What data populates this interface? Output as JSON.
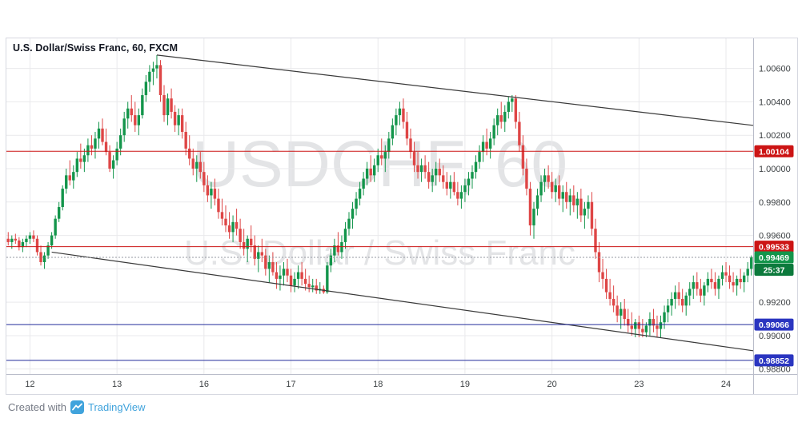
{
  "chart": {
    "title": "U.S. Dollar/Swiss Franc, 60, FXCM",
    "watermark_line1": "USDCHF, 60",
    "watermark_line2": "U.S. Dollar / Swiss Franc"
  },
  "footer": {
    "created_with": "Created with",
    "brand": "TradingView"
  },
  "colors": {
    "background": "#ffffff",
    "grid": "#e9e9ec",
    "axis_border": "#b9bcc9",
    "axis_text": "#3c4043",
    "up": "#13954b",
    "down": "#de4646",
    "trendline": "#3a3a3a",
    "line_red": "#cc1414",
    "badge_red": "#cc1414",
    "line_blue": "#202a9a",
    "badge_blue": "#2a35c0",
    "current_badge": "#13954b",
    "countdown_badge": "#0c7a3c",
    "current_line": "#9598a1",
    "watermark": "rgba(60,65,75,0.14)",
    "brand_blue": "#40a3dc",
    "footer_text": "#757a85"
  },
  "chart_data": {
    "type": "candlestick",
    "symbol": "USDCHF",
    "name": "U.S. Dollar/Swiss Franc",
    "interval_minutes": "60",
    "exchange": "FXCM",
    "y_range": [
      0.9877,
      1.0078
    ],
    "y_ticks": [
      1.006,
      1.004,
      1.002,
      1.0,
      0.998,
      0.996,
      0.994,
      0.992,
      0.99,
      0.988
    ],
    "x_tick_labels": [
      "12",
      "13",
      "16",
      "17",
      "18",
      "19",
      "20",
      "23",
      "24"
    ],
    "x_tick_indices": [
      6,
      30,
      54,
      78,
      102,
      126,
      150,
      174,
      198
    ],
    "price_lines": [
      {
        "price": 1.00104,
        "label": "1.00104",
        "color": "red"
      },
      {
        "price": 0.99533,
        "label": "0.99533",
        "color": "red"
      },
      {
        "price": 0.99066,
        "label": "0.99066",
        "color": "blue"
      },
      {
        "price": 0.98852,
        "label": "0.98852",
        "color": "blue"
      }
    ],
    "current_price": {
      "price": 0.99469,
      "label": "0.99469",
      "countdown": "25:37",
      "direction": "up"
    },
    "trendlines": [
      {
        "name": "upper-descending-trendline",
        "from": [
          41,
          1.0068
        ],
        "to": [
          207,
          1.00255
        ]
      },
      {
        "name": "lower-descending-trendline",
        "from": [
          12,
          0.995
        ],
        "to": [
          207,
          0.98905
        ]
      }
    ],
    "candles_format": "[open, high, low, close]",
    "candles": [
      [
        0.9958,
        0.9962,
        0.9954,
        0.9956
      ],
      [
        0.9956,
        0.996,
        0.9952,
        0.9958
      ],
      [
        0.9958,
        0.9961,
        0.9955,
        0.9957
      ],
      [
        0.9957,
        0.9959,
        0.9951,
        0.9953
      ],
      [
        0.9953,
        0.9958,
        0.995,
        0.9956
      ],
      [
        0.9956,
        0.996,
        0.9953,
        0.9958
      ],
      [
        0.9958,
        0.9962,
        0.9955,
        0.996
      ],
      [
        0.996,
        0.9963,
        0.9956,
        0.9958
      ],
      [
        0.9958,
        0.996,
        0.9948,
        0.995
      ],
      [
        0.995,
        0.9954,
        0.9942,
        0.9944
      ],
      [
        0.9944,
        0.995,
        0.994,
        0.9948
      ],
      [
        0.9948,
        0.9956,
        0.9946,
        0.9954
      ],
      [
        0.9954,
        0.9962,
        0.9952,
        0.996
      ],
      [
        0.996,
        0.9972,
        0.9958,
        0.997
      ],
      [
        0.997,
        0.998,
        0.9968,
        0.9977
      ],
      [
        0.9977,
        0.999,
        0.9975,
        0.9988
      ],
      [
        0.9988,
        1.0,
        0.9985,
        0.9996
      ],
      [
        0.9996,
        1.0005,
        0.999,
        0.9993
      ],
      [
        0.9993,
        1.0002,
        0.9988,
        0.9998
      ],
      [
        0.9998,
        1.001,
        0.9995,
        1.0006
      ],
      [
        1.0006,
        1.0015,
        1.0,
        1.0004
      ],
      [
        1.0004,
        1.0012,
        0.9998,
        1.0008
      ],
      [
        1.0008,
        1.0018,
        1.0004,
        1.0014
      ],
      [
        1.0014,
        1.002,
        1.0008,
        1.0012
      ],
      [
        1.0012,
        1.0022,
        1.0006,
        1.0018
      ],
      [
        1.0018,
        1.0028,
        1.0012,
        1.0024
      ],
      [
        1.0024,
        1.003,
        1.0014,
        1.0016
      ],
      [
        1.0016,
        1.0024,
        1.0008,
        1.001
      ],
      [
        1.001,
        1.0014,
        0.9998,
        1.0
      ],
      [
        1.0,
        1.0008,
        0.9994,
        1.0005
      ],
      [
        1.0005,
        1.0016,
        1.0002,
        1.0012
      ],
      [
        1.0012,
        1.0024,
        1.0008,
        1.002
      ],
      [
        1.002,
        1.0034,
        1.0016,
        1.003
      ],
      [
        1.003,
        1.004,
        1.0024,
        1.0036
      ],
      [
        1.0036,
        1.0044,
        1.0028,
        1.0032
      ],
      [
        1.0032,
        1.004,
        1.0022,
        1.0026
      ],
      [
        1.0026,
        1.0036,
        1.002,
        1.0032
      ],
      [
        1.0032,
        1.0048,
        1.003,
        1.0044
      ],
      [
        1.0044,
        1.0056,
        1.004,
        1.0052
      ],
      [
        1.0052,
        1.0062,
        1.0046,
        1.0058
      ],
      [
        1.0058,
        1.0064,
        1.005,
        1.006
      ],
      [
        1.006,
        1.0068,
        1.0054,
        1.0062
      ],
      [
        1.0062,
        1.0065,
        1.004,
        1.0044
      ],
      [
        1.0044,
        1.005,
        1.0028,
        1.0032
      ],
      [
        1.0032,
        1.0045,
        1.0026,
        1.0042
      ],
      [
        1.0042,
        1.0048,
        1.003,
        1.0034
      ],
      [
        1.0034,
        1.0038,
        1.0022,
        1.0026
      ],
      [
        1.0026,
        1.0036,
        1.002,
        1.0032
      ],
      [
        1.0032,
        1.0036,
        1.0018,
        1.0022
      ],
      [
        1.0022,
        1.0028,
        1.0008,
        1.0012
      ],
      [
        1.0012,
        1.002,
        1.0002,
        1.0006
      ],
      [
        1.0006,
        1.0012,
        0.9996,
        1.0
      ],
      [
        1.0,
        1.0008,
        0.9992,
        1.0004
      ],
      [
        1.0004,
        1.001,
        0.9994,
        0.9998
      ],
      [
        0.9998,
        1.0004,
        0.9986,
        0.999
      ],
      [
        0.999,
        0.9996,
        0.998,
        0.9984
      ],
      [
        0.9984,
        0.9992,
        0.9976,
        0.9988
      ],
      [
        0.9988,
        0.9994,
        0.9978,
        0.9982
      ],
      [
        0.9982,
        0.9988,
        0.997,
        0.9974
      ],
      [
        0.9974,
        0.9982,
        0.9966,
        0.997
      ],
      [
        0.997,
        0.9978,
        0.9962,
        0.9966
      ],
      [
        0.9966,
        0.9974,
        0.9958,
        0.9962
      ],
      [
        0.9962,
        0.9972,
        0.9956,
        0.9968
      ],
      [
        0.9968,
        0.9976,
        0.996,
        0.9964
      ],
      [
        0.9964,
        0.997,
        0.9952,
        0.9956
      ],
      [
        0.9956,
        0.9964,
        0.9948,
        0.9952
      ],
      [
        0.9952,
        0.996,
        0.9944,
        0.9958
      ],
      [
        0.9958,
        0.9966,
        0.995,
        0.9954
      ],
      [
        0.9954,
        0.996,
        0.9942,
        0.9946
      ],
      [
        0.9946,
        0.9954,
        0.9938,
        0.995
      ],
      [
        0.995,
        0.9958,
        0.9944,
        0.9948
      ],
      [
        0.9948,
        0.9952,
        0.9936,
        0.994
      ],
      [
        0.994,
        0.9948,
        0.9932,
        0.9944
      ],
      [
        0.9944,
        0.995,
        0.9936,
        0.9938
      ],
      [
        0.9938,
        0.9944,
        0.9928,
        0.9934
      ],
      [
        0.9934,
        0.9942,
        0.9927,
        0.9936
      ],
      [
        0.9936,
        0.9944,
        0.993,
        0.994
      ],
      [
        0.994,
        0.9946,
        0.9932,
        0.9936
      ],
      [
        0.9936,
        0.994,
        0.9926,
        0.993
      ],
      [
        0.993,
        0.9938,
        0.9926,
        0.9934
      ],
      [
        0.9934,
        0.9942,
        0.9928,
        0.9938
      ],
      [
        0.9938,
        0.9944,
        0.993,
        0.9934
      ],
      [
        0.9934,
        0.994,
        0.9927,
        0.9931
      ],
      [
        0.9931,
        0.9936,
        0.9926,
        0.9929
      ],
      [
        0.9929,
        0.9934,
        0.9926,
        0.993
      ],
      [
        0.993,
        0.9934,
        0.9925,
        0.9927
      ],
      [
        0.9927,
        0.9932,
        0.9925,
        0.9928
      ],
      [
        0.9928,
        0.993,
        0.9925,
        0.9926
      ],
      [
        0.9926,
        0.9944,
        0.9925,
        0.9942
      ],
      [
        0.9942,
        0.9952,
        0.9938,
        0.9948
      ],
      [
        0.9948,
        0.9958,
        0.9944,
        0.9954
      ],
      [
        0.9954,
        0.9962,
        0.9948,
        0.995
      ],
      [
        0.995,
        0.996,
        0.9946,
        0.9956
      ],
      [
        0.9956,
        0.9968,
        0.9952,
        0.9964
      ],
      [
        0.9964,
        0.9974,
        0.996,
        0.997
      ],
      [
        0.997,
        0.998,
        0.9964,
        0.9976
      ],
      [
        0.9976,
        0.9986,
        0.9972,
        0.9982
      ],
      [
        0.9982,
        0.9992,
        0.9978,
        0.9988
      ],
      [
        0.9988,
        0.9998,
        0.9984,
        0.9994
      ],
      [
        0.9994,
        1.0004,
        0.999,
        1.0
      ],
      [
        1.0,
        1.0008,
        0.9992,
        0.9996
      ],
      [
        0.9996,
        1.0006,
        0.9992,
        1.0002
      ],
      [
        1.0002,
        1.0012,
        0.9998,
        1.0008
      ],
      [
        1.0008,
        1.0018,
        1.0002,
        1.0006
      ],
      [
        1.0006,
        1.0014,
        0.9998,
        1.001
      ],
      [
        1.001,
        1.0022,
        1.0006,
        1.0018
      ],
      [
        1.0018,
        1.003,
        1.0014,
        1.0026
      ],
      [
        1.0026,
        1.0036,
        1.002,
        1.0032
      ],
      [
        1.0032,
        1.004,
        1.0026,
        1.0036
      ],
      [
        1.0036,
        1.0042,
        1.0024,
        1.0028
      ],
      [
        1.0028,
        1.0034,
        1.0014,
        1.0018
      ],
      [
        1.0018,
        1.0024,
        1.0006,
        1.001
      ],
      [
        1.001,
        1.0016,
        0.9998,
        1.0002
      ],
      [
        1.0002,
        1.001,
        0.9994,
        0.9998
      ],
      [
        0.9998,
        1.0006,
        0.9992,
        1.0002
      ],
      [
        1.0002,
        1.0008,
        0.9994,
        0.9998
      ],
      [
        0.9998,
        1.0004,
        0.9988,
        0.9992
      ],
      [
        0.9992,
        1.0,
        0.9986,
        0.9996
      ],
      [
        0.9996,
        1.0004,
        0.999,
        1.0
      ],
      [
        1.0,
        1.0006,
        0.9992,
        0.9996
      ],
      [
        0.9996,
        1.0002,
        0.9988,
        0.9992
      ],
      [
        0.9992,
        0.9998,
        0.9984,
        0.9988
      ],
      [
        0.9988,
        0.9996,
        0.9982,
        0.9992
      ],
      [
        0.9992,
        0.9998,
        0.9984,
        0.9986
      ],
      [
        0.9986,
        0.9992,
        0.9978,
        0.9982
      ],
      [
        0.9982,
        0.999,
        0.9976,
        0.9986
      ],
      [
        0.9986,
        0.9994,
        0.998,
        0.999
      ],
      [
        0.999,
        0.9998,
        0.9984,
        0.9994
      ],
      [
        0.9994,
        1.0002,
        0.9988,
        0.9998
      ],
      [
        0.9998,
        1.0008,
        0.9994,
        1.0004
      ],
      [
        1.0004,
        1.0014,
        1.0,
        1.001
      ],
      [
        1.001,
        1.002,
        1.0004,
        1.0016
      ],
      [
        1.0016,
        1.0024,
        1.0008,
        1.0012
      ],
      [
        1.0012,
        1.0022,
        1.0006,
        1.0018
      ],
      [
        1.0018,
        1.003,
        1.0014,
        1.0026
      ],
      [
        1.0026,
        1.0036,
        1.002,
        1.0032
      ],
      [
        1.0032,
        1.004,
        1.0024,
        1.0028
      ],
      [
        1.0028,
        1.0038,
        1.0022,
        1.0034
      ],
      [
        1.0034,
        1.0043,
        1.003,
        1.004
      ],
      [
        1.004,
        1.0044,
        1.0034,
        1.0042
      ],
      [
        1.0042,
        1.0044,
        1.0024,
        1.0028
      ],
      [
        1.0028,
        1.0034,
        1.001,
        1.0014
      ],
      [
        1.0014,
        1.002,
        0.9996,
        1.0
      ],
      [
        1.0,
        1.0006,
        0.9984,
        0.9988
      ],
      [
        0.9988,
        0.9992,
        0.996,
        0.9966
      ],
      [
        0.9966,
        0.998,
        0.9958,
        0.9976
      ],
      [
        0.9976,
        0.9988,
        0.9972,
        0.9984
      ],
      [
        0.9984,
        0.9996,
        0.998,
        0.9992
      ],
      [
        0.9992,
        1.0,
        0.9986,
        0.9996
      ],
      [
        0.9996,
        1.0002,
        0.9988,
        0.9992
      ],
      [
        0.9992,
        0.9998,
        0.9982,
        0.9986
      ],
      [
        0.9986,
        0.9994,
        0.998,
        0.999
      ],
      [
        0.999,
        0.9996,
        0.9978,
        0.9982
      ],
      [
        0.9982,
        0.999,
        0.9974,
        0.9986
      ],
      [
        0.9986,
        0.9992,
        0.9976,
        0.998
      ],
      [
        0.998,
        0.9988,
        0.9972,
        0.9984
      ],
      [
        0.9984,
        0.999,
        0.9974,
        0.9978
      ],
      [
        0.9978,
        0.9986,
        0.997,
        0.9982
      ],
      [
        0.9982,
        0.9988,
        0.9968,
        0.9972
      ],
      [
        0.9972,
        0.998,
        0.9964,
        0.9976
      ],
      [
        0.9976,
        0.9984,
        0.997,
        0.998
      ],
      [
        0.998,
        0.9986,
        0.996,
        0.9964
      ],
      [
        0.9964,
        0.997,
        0.9946,
        0.995
      ],
      [
        0.995,
        0.9956,
        0.9932,
        0.9938
      ],
      [
        0.9938,
        0.9946,
        0.9928,
        0.9934
      ],
      [
        0.9934,
        0.994,
        0.9922,
        0.9926
      ],
      [
        0.9926,
        0.9934,
        0.9918,
        0.9922
      ],
      [
        0.9922,
        0.993,
        0.9914,
        0.9918
      ],
      [
        0.9918,
        0.9924,
        0.9908,
        0.9912
      ],
      [
        0.9912,
        0.992,
        0.9904,
        0.9916
      ],
      [
        0.9916,
        0.9922,
        0.9906,
        0.991
      ],
      [
        0.991,
        0.9916,
        0.9902,
        0.9906
      ],
      [
        0.9906,
        0.9914,
        0.99,
        0.9904
      ],
      [
        0.9904,
        0.991,
        0.9899,
        0.9908
      ],
      [
        0.9908,
        0.9912,
        0.9899,
        0.9904
      ],
      [
        0.9904,
        0.991,
        0.9899,
        0.9902
      ],
      [
        0.9902,
        0.9908,
        0.9899,
        0.9906
      ],
      [
        0.9906,
        0.9914,
        0.99,
        0.991
      ],
      [
        0.991,
        0.9916,
        0.9902,
        0.9906
      ],
      [
        0.9906,
        0.9912,
        0.9899,
        0.9904
      ],
      [
        0.9904,
        0.9912,
        0.9899,
        0.9908
      ],
      [
        0.9908,
        0.9918,
        0.9904,
        0.9914
      ],
      [
        0.9914,
        0.9922,
        0.9908,
        0.9918
      ],
      [
        0.9918,
        0.9926,
        0.9912,
        0.9922
      ],
      [
        0.9922,
        0.993,
        0.9916,
        0.9926
      ],
      [
        0.9926,
        0.9932,
        0.9918,
        0.9922
      ],
      [
        0.9922,
        0.9928,
        0.9914,
        0.9918
      ],
      [
        0.9918,
        0.9926,
        0.9912,
        0.9924
      ],
      [
        0.9924,
        0.9932,
        0.9918,
        0.9928
      ],
      [
        0.9928,
        0.9936,
        0.9922,
        0.9932
      ],
      [
        0.9932,
        0.9938,
        0.9924,
        0.9928
      ],
      [
        0.9928,
        0.9934,
        0.992,
        0.9924
      ],
      [
        0.9924,
        0.9932,
        0.9918,
        0.993
      ],
      [
        0.993,
        0.9938,
        0.9926,
        0.9934
      ],
      [
        0.9934,
        0.994,
        0.9928,
        0.9932
      ],
      [
        0.9932,
        0.9938,
        0.9924,
        0.9928
      ],
      [
        0.9928,
        0.9936,
        0.9922,
        0.9934
      ],
      [
        0.9934,
        0.9942,
        0.993,
        0.9938
      ],
      [
        0.9938,
        0.9944,
        0.9932,
        0.9936
      ],
      [
        0.9936,
        0.9942,
        0.9928,
        0.9932
      ],
      [
        0.9932,
        0.9938,
        0.9926,
        0.993
      ],
      [
        0.993,
        0.9936,
        0.9924,
        0.9934
      ],
      [
        0.9934,
        0.994,
        0.9928,
        0.9932
      ],
      [
        0.9932,
        0.9938,
        0.9926,
        0.9936
      ],
      [
        0.9936,
        0.9944,
        0.9932,
        0.994
      ],
      [
        0.994,
        0.9948,
        0.9936,
        0.99469
      ]
    ]
  }
}
